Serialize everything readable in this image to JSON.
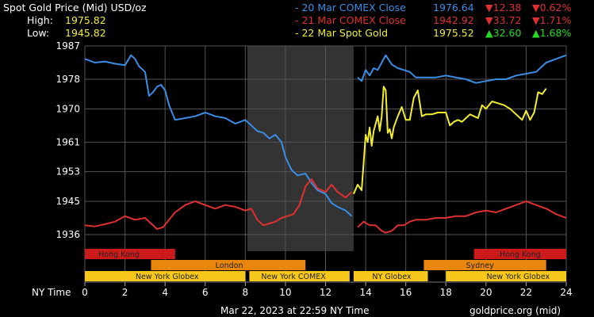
{
  "header": {
    "title": "Spot Gold Price (Mid) USD/oz",
    "high_label": "High:",
    "high_value": "1975.82",
    "low_label": "Low:",
    "low_value": "1945.82"
  },
  "legend": [
    {
      "label": "- 20 Mar COMEX Close",
      "price": "1976.64",
      "change": "▼12.38",
      "pct": "▼0.62%",
      "color": "#3a8ee6",
      "change_color": "#e03030"
    },
    {
      "label": "- 21 Mar COMEX Close",
      "price": "1942.92",
      "change": "▼33.72",
      "pct": "▼1.71%",
      "color": "#e03030",
      "change_color": "#e03030"
    },
    {
      "label": "- 22 Mar Spot Gold",
      "price": "1975.52",
      "change": "▲32.60",
      "pct": "▲1.68%",
      "color": "#f2ee2e",
      "change_color": "#22dd22"
    }
  ],
  "footer": {
    "timestamp": "Mar 22, 2023 at 22:59 NY Time",
    "source": "goldprice.org (mid)"
  },
  "colors": {
    "background": "#000000",
    "grid": "#555555",
    "highlight_band": "#333333",
    "session_red": "#cc1a1a",
    "session_orange": "#e8860e",
    "session_yellow": "#f7c81c"
  },
  "chart_data": {
    "type": "line",
    "title": "Spot Gold Price (Mid) USD/oz",
    "xlabel": "NY Time",
    "ylabel": "",
    "xlim": [
      0,
      24
    ],
    "ylim": [
      1931.5,
      1987
    ],
    "x_ticks": [
      "0",
      "2",
      "4",
      "6",
      "8",
      "10",
      "12",
      "14",
      "16",
      "18",
      "20",
      "22",
      "24"
    ],
    "y_ticks": [
      "1987",
      "1978",
      "1970",
      "1961",
      "1953",
      "1945",
      "1936"
    ],
    "grid": true,
    "highlight_band": [
      8.1,
      13.4
    ],
    "series": [
      {
        "name": "20 Mar COMEX Close",
        "color": "#3a8ee6",
        "x": [
          0,
          0.5,
          1,
          1.5,
          2,
          2.3,
          2.5,
          2.7,
          3,
          3.2,
          3.4,
          3.6,
          3.8,
          4,
          4.2,
          4.5,
          5,
          5.5,
          6,
          6.5,
          7,
          7.5,
          8,
          8.3,
          8.6,
          8.9,
          9.2,
          9.5,
          9.8,
          10,
          10.3,
          10.6,
          11,
          11.3,
          11.6,
          12,
          12.3,
          12.6,
          13,
          13.3,
          13.6,
          13.8,
          14,
          14.2,
          14.4,
          14.6,
          14.8,
          15,
          15.3,
          15.6,
          15.9,
          16.2,
          16.5,
          17,
          17.5,
          18,
          18.5,
          19,
          19.5,
          20,
          20.5,
          21,
          21.5,
          22,
          22.5,
          23,
          23.5,
          24
        ],
        "y": [
          1983.5,
          1982.5,
          1982.8,
          1982.2,
          1981.8,
          1984.5,
          1983.5,
          1981.5,
          1980,
          1973.5,
          1974.5,
          1976,
          1976.5,
          1975,
          1971,
          1967,
          1967.5,
          1968,
          1969,
          1968,
          1967.5,
          1966,
          1967,
          1965.5,
          1964,
          1963.5,
          1962,
          1963,
          1961,
          1957,
          1953.5,
          1952,
          1952.5,
          1950,
          1948,
          1947,
          1944.5,
          1943.5,
          1942.5,
          1941,
          1978.5,
          1977.5,
          1980.5,
          1979,
          1981,
          1980.5,
          1982.5,
          1984.5,
          1982,
          1981,
          1980.5,
          1980,
          1978.5,
          1978.5,
          1978.5,
          1979,
          1978.5,
          1978,
          1977,
          1977.5,
          1978,
          1978,
          1979,
          1979.5,
          1980,
          1982.5,
          1983.5,
          1984.5
        ]
      },
      {
        "name": "21 Mar COMEX Close",
        "color": "#e03030",
        "x": [
          0,
          0.5,
          1,
          1.5,
          2,
          2.5,
          3,
          3.3,
          3.6,
          3.9,
          4.2,
          4.5,
          5,
          5.5,
          6,
          6.5,
          7,
          7.5,
          8,
          8.3,
          8.6,
          8.9,
          9.2,
          9.5,
          9.8,
          10.1,
          10.4,
          10.7,
          11,
          11.3,
          11.6,
          12,
          12.3,
          12.6,
          13,
          13.3,
          13.6,
          13.9,
          14.2,
          14.5,
          14.8,
          15,
          15.3,
          15.6,
          15.9,
          16.2,
          16.5,
          17,
          17.5,
          18,
          18.5,
          19,
          19.5,
          20,
          20.5,
          21,
          21.5,
          22,
          22.5,
          23,
          23.5,
          24
        ],
        "y": [
          1938.5,
          1938.2,
          1938.8,
          1939.5,
          1941,
          1940,
          1940.5,
          1939,
          1937.5,
          1938,
          1940,
          1942,
          1944,
          1945,
          1944,
          1943,
          1944,
          1943.5,
          1942.5,
          1943,
          1940,
          1938.5,
          1939,
          1939.5,
          1940.5,
          1941,
          1941.5,
          1944,
          1949,
          1951,
          1948.5,
          1947.5,
          1949.5,
          1947.5,
          1946,
          1947.5,
          1938,
          1939.5,
          1938.5,
          1938.5,
          1937,
          1936.5,
          1937,
          1938.5,
          1938.5,
          1939.5,
          1940,
          1940,
          1940.5,
          1940.5,
          1941,
          1941,
          1942,
          1942.5,
          1942,
          1943,
          1944,
          1945,
          1944,
          1943,
          1941.5,
          1940.5
        ]
      },
      {
        "name": "22 Mar Spot Gold",
        "color": "#f2ee2e",
        "x": [
          13.4,
          13.6,
          13.8,
          14,
          14.1,
          14.2,
          14.3,
          14.4,
          14.5,
          14.6,
          14.7,
          14.8,
          14.9,
          15,
          15.1,
          15.2,
          15.3,
          15.4,
          15.5,
          15.6,
          15.8,
          16,
          16.2,
          16.4,
          16.6,
          16.8,
          17,
          17.3,
          17.6,
          18,
          18.2,
          18.4,
          18.6,
          18.8,
          19,
          19.2,
          19.4,
          19.6,
          19.8,
          20,
          20.3,
          20.6,
          20.9,
          21.2,
          21.5,
          21.8,
          22,
          22.2,
          22.4,
          22.6,
          22.8,
          23
        ],
        "y": [
          1947,
          1949.5,
          1948,
          1963,
          1961,
          1965,
          1960,
          1964,
          1966,
          1968,
          1964,
          1968,
          1976,
          1975,
          1963.5,
          1964.5,
          1962,
          1965,
          1966.5,
          1968,
          1970.5,
          1967,
          1967,
          1973,
          1975,
          1968,
          1968.5,
          1968.5,
          1969,
          1969,
          1965.5,
          1966.5,
          1967,
          1966.5,
          1967.5,
          1968.5,
          1968,
          1967.5,
          1971,
          1970,
          1972,
          1971.5,
          1971,
          1970,
          1968.5,
          1967,
          1969.5,
          1967,
          1969,
          1974.5,
          1974,
          1975.5
        ]
      }
    ]
  },
  "sessions": {
    "label": "NY Time",
    "bars": [
      {
        "name": "Hong Kong",
        "row": 0,
        "color": "#cc1a1a",
        "spans": [
          [
            0,
            4.5
          ],
          [
            19.4,
            24
          ]
        ],
        "labels": [
          [
            1.7
          ],
          [
            21.7
          ]
        ]
      },
      {
        "name": "London",
        "row": 1,
        "color": "#e8860e",
        "spans": [
          [
            3.3,
            11
          ]
        ],
        "labels": [
          [
            7.2
          ]
        ]
      },
      {
        "name": "Sydney",
        "row": 1,
        "color": "#e8860e",
        "spans": [
          [
            16.9,
            23
          ]
        ],
        "labels": [
          [
            19.7
          ]
        ]
      },
      {
        "name": "New York Globex",
        "row": 2,
        "color": "#f7c81c",
        "spans": [
          [
            0,
            8
          ]
        ],
        "labels": [
          [
            4.1
          ]
        ]
      },
      {
        "name": "New York COMEX",
        "row": 2,
        "color": "#f7c81c",
        "spans": [
          [
            8.2,
            13.2
          ]
        ],
        "labels": [
          [
            10.4
          ]
        ]
      },
      {
        "name": "NY Globex",
        "row": 2,
        "color": "#f7c81c",
        "spans": [
          [
            13.4,
            17.1
          ]
        ],
        "labels": [
          [
            15.3
          ]
        ]
      },
      {
        "name": "New York Globex",
        "row": 2,
        "color": "#f7c81c",
        "spans": [
          [
            18,
            24
          ]
        ],
        "labels": [
          [
            21.6
          ]
        ]
      }
    ]
  }
}
